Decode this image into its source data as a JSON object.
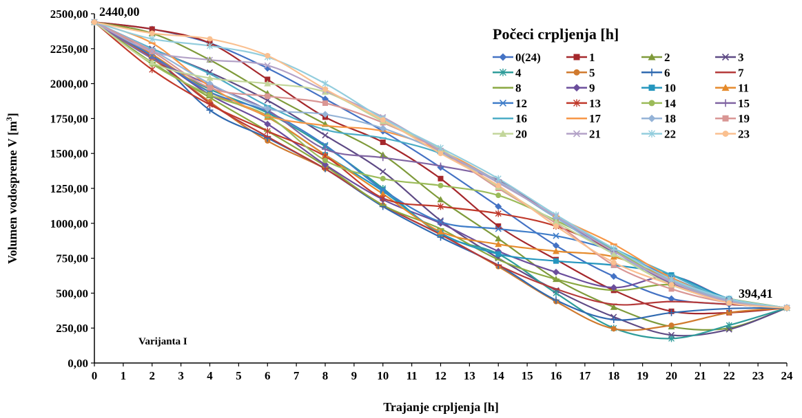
{
  "chart_data": {
    "type": "line",
    "xlabel": "Trajanje crpljenja [h]",
    "ylabel": "Volumen vodospreme V [m³]",
    "ylabel_main": "Volumen vodospreme V [m",
    "ylabel_sup": "3",
    "ylabel_close": "]",
    "xlim": [
      0,
      24
    ],
    "ylim": [
      0,
      2500
    ],
    "x_ticks": [
      "0",
      "1",
      "2",
      "3",
      "4",
      "5",
      "6",
      "7",
      "8",
      "9",
      "10",
      "11",
      "12",
      "13",
      "14",
      "15",
      "16",
      "17",
      "18",
      "19",
      "20",
      "21",
      "22",
      "23",
      "24"
    ],
    "y_ticks": [
      "0,00",
      "250,00",
      "500,00",
      "750,00",
      "1000,00",
      "1250,00",
      "1500,00",
      "1750,00",
      "2000,00",
      "2250,00",
      "2500,00"
    ],
    "y_tick_values": [
      0,
      250,
      500,
      750,
      1000,
      1250,
      1500,
      1750,
      2000,
      2250,
      2500
    ],
    "grid": false,
    "legend_title": "Počeci crpljenja [h]",
    "legend_position": "top-right",
    "annotation_start": "2440,00",
    "annotation_end": "394,41",
    "note": "Varijanta I",
    "x": [
      0,
      2,
      4,
      6,
      8,
      10,
      12,
      14,
      16,
      18,
      20,
      22,
      24
    ],
    "series": [
      {
        "name": "0(24)",
        "color": "#4472C4",
        "marker": "diamond",
        "values": [
          2440,
          2390,
          2290,
          2110,
          1890,
          1660,
          1400,
          1120,
          840,
          620,
          460,
          420,
          394.41
        ]
      },
      {
        "name": "1",
        "color": "#A5282C",
        "marker": "square",
        "values": [
          2440,
          2390,
          2290,
          2030,
          1760,
          1580,
          1320,
          980,
          740,
          520,
          370,
          360,
          394.41
        ]
      },
      {
        "name": "2",
        "color": "#7F9A3A",
        "marker": "triangle",
        "values": [
          2440,
          2360,
          2170,
          1930,
          1710,
          1490,
          1170,
          890,
          600,
          400,
          260,
          250,
          394.41
        ]
      },
      {
        "name": "3",
        "color": "#5E4A85",
        "marker": "x",
        "values": [
          2440,
          2250,
          2080,
          1880,
          1630,
          1370,
          1020,
          750,
          520,
          330,
          200,
          240,
          394.41
        ]
      },
      {
        "name": "4",
        "color": "#2E9C9A",
        "marker": "asterisk",
        "values": [
          2440,
          2180,
          1960,
          1790,
          1550,
          1250,
          920,
          780,
          500,
          250,
          175,
          270,
          394.41
        ]
      },
      {
        "name": "5",
        "color": "#D07A2E",
        "marker": "circle",
        "values": [
          2440,
          2180,
          1870,
          1590,
          1390,
          1130,
          920,
          690,
          440,
          245,
          270,
          360,
          394.41
        ]
      },
      {
        "name": "6",
        "color": "#2F69B0",
        "marker": "plus",
        "values": [
          2440,
          2200,
          1810,
          1610,
          1390,
          1120,
          900,
          700,
          450,
          310,
          360,
          390,
          394.41
        ]
      },
      {
        "name": "7",
        "color": "#B53A3A",
        "marker": "dash",
        "values": [
          2440,
          2190,
          1860,
          1620,
          1390,
          1130,
          920,
          700,
          530,
          420,
          440,
          420,
          394.41
        ]
      },
      {
        "name": "8",
        "color": "#8AA840",
        "marker": "dash",
        "values": [
          2440,
          2150,
          1900,
          1660,
          1410,
          1130,
          960,
          740,
          600,
          520,
          560,
          460,
          394.41
        ]
      },
      {
        "name": "9",
        "color": "#6B4E9C",
        "marker": "diamond",
        "values": [
          2440,
          2200,
          1920,
          1710,
          1420,
          1170,
          1000,
          800,
          650,
          540,
          620,
          460,
          394.41
        ]
      },
      {
        "name": "10",
        "color": "#2596BE",
        "marker": "square",
        "values": [
          2440,
          2200,
          1940,
          1760,
          1490,
          1230,
          930,
          780,
          730,
          700,
          630,
          460,
          394.41
        ]
      },
      {
        "name": "11",
        "color": "#E58A2B",
        "marker": "triangle",
        "values": [
          2440,
          2210,
          1940,
          1760,
          1490,
          1210,
          940,
          850,
          800,
          760,
          600,
          450,
          394.41
        ]
      },
      {
        "name": "12",
        "color": "#3F7DC9",
        "marker": "x",
        "values": [
          2440,
          2200,
          1940,
          1800,
          1560,
          1240,
          1010,
          960,
          910,
          800,
          610,
          450,
          394.41
        ]
      },
      {
        "name": "13",
        "color": "#C0392B",
        "marker": "asterisk",
        "values": [
          2440,
          2100,
          1850,
          1660,
          1480,
          1180,
          1120,
          1070,
          980,
          800,
          570,
          440,
          394.41
        ]
      },
      {
        "name": "14",
        "color": "#9BBB59",
        "marker": "circle",
        "values": [
          2440,
          2140,
          1920,
          1770,
          1450,
          1320,
          1270,
          1200,
          1020,
          810,
          580,
          450,
          394.41
        ]
      },
      {
        "name": "15",
        "color": "#8064A2",
        "marker": "plus",
        "values": [
          2440,
          2180,
          1990,
          1810,
          1530,
          1470,
          1410,
          1310,
          1040,
          800,
          570,
          440,
          394.41
        ]
      },
      {
        "name": "16",
        "color": "#4BACC6",
        "marker": "dash",
        "values": [
          2440,
          2250,
          2070,
          1840,
          1670,
          1610,
          1500,
          1300,
          1040,
          820,
          630,
          450,
          394.41
        ]
      },
      {
        "name": "17",
        "color": "#F79646",
        "marker": "dash",
        "values": [
          2440,
          2290,
          1980,
          1770,
          1700,
          1660,
          1520,
          1300,
          1050,
          850,
          610,
          450,
          394.41
        ]
      },
      {
        "name": "18",
        "color": "#95B3D7",
        "marker": "diamond",
        "values": [
          2440,
          2240,
          2000,
          1820,
          1780,
          1680,
          1510,
          1300,
          1040,
          780,
          590,
          450,
          394.41
        ]
      },
      {
        "name": "19",
        "color": "#D99694",
        "marker": "square",
        "values": [
          2440,
          2230,
          1970,
          1910,
          1860,
          1720,
          1520,
          1250,
          1000,
          700,
          530,
          430,
          394.41
        ]
      },
      {
        "name": "20",
        "color": "#C3D69B",
        "marker": "triangle",
        "values": [
          2440,
          2150,
          2040,
          2000,
          1940,
          1730,
          1530,
          1260,
          1010,
          780,
          560,
          440,
          394.41
        ]
      },
      {
        "name": "21",
        "color": "#B3A2C7",
        "marker": "x",
        "values": [
          2440,
          2230,
          2170,
          2130,
          1950,
          1760,
          1520,
          1290,
          1050,
          800,
          580,
          440,
          394.41
        ]
      },
      {
        "name": "22",
        "color": "#93CDDD",
        "marker": "asterisk",
        "values": [
          2440,
          2320,
          2270,
          2190,
          2000,
          1750,
          1540,
          1320,
          1060,
          820,
          600,
          460,
          394.41
        ]
      },
      {
        "name": "23",
        "color": "#FAC090",
        "marker": "circle",
        "values": [
          2440,
          2360,
          2320,
          2200,
          1960,
          1740,
          1500,
          1270,
          980,
          720,
          560,
          430,
          394.41
        ]
      }
    ]
  }
}
